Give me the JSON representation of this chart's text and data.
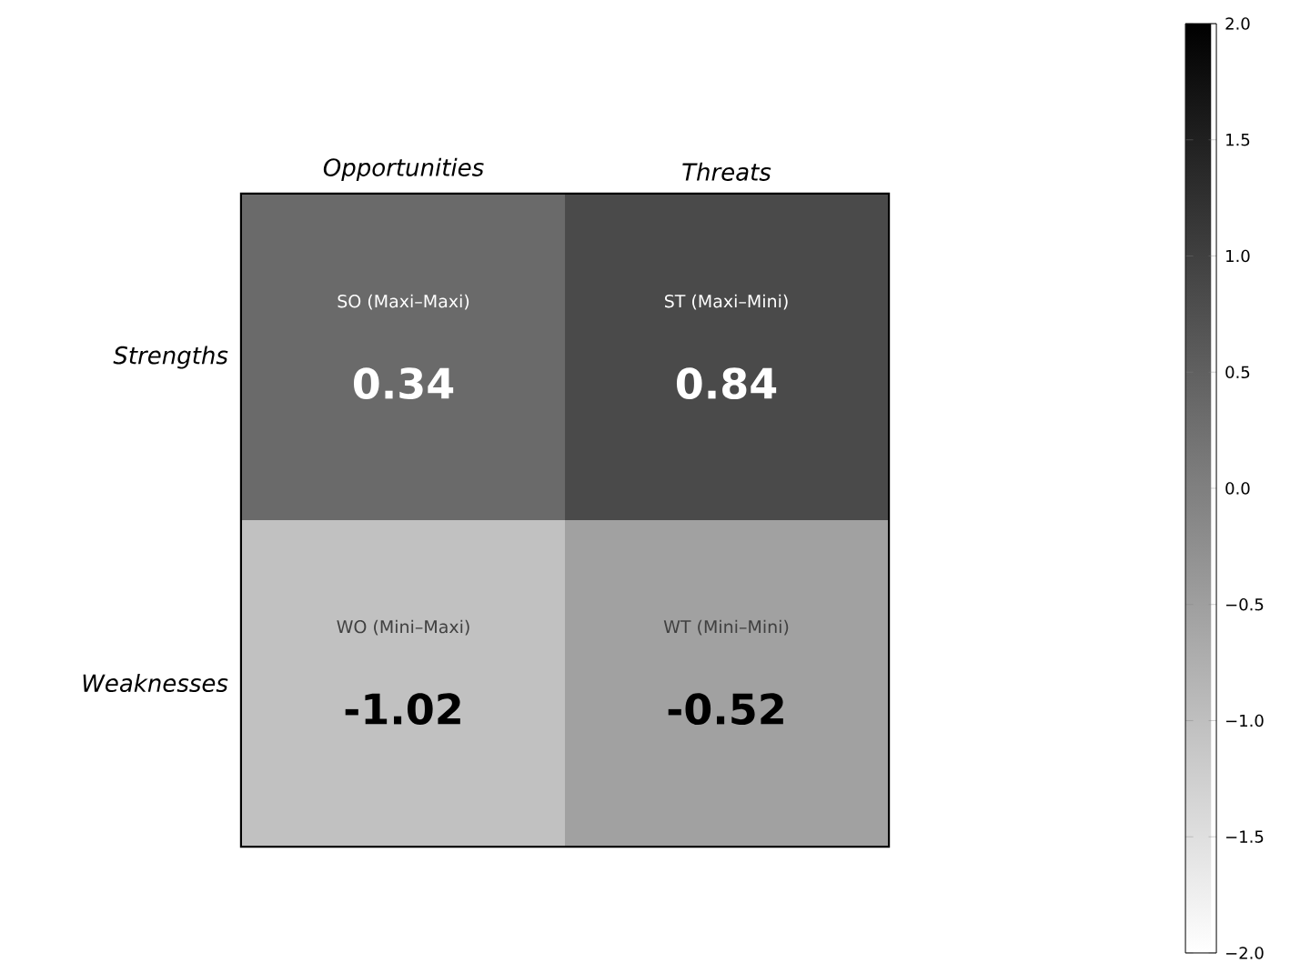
{
  "chart_data": {
    "type": "heatmap",
    "categories": [
      "Opportunities",
      "Threats"
    ],
    "y_categories": [
      "Strengths",
      "Weaknesses"
    ],
    "cells": [
      [
        0.34,
        0.84
      ],
      [
        -1.02,
        -0.52
      ]
    ],
    "data_labels": true,
    "annotations": [
      "SO (Maxi–Maxi)",
      "ST (Maxi–Mini)",
      "WO (Mini–Maxi)",
      "WT (Mini–Mini)"
    ],
    "clim": [
      -2,
      2
    ],
    "cticks": [
      {
        "value": -2,
        "label": "−2.0"
      },
      {
        "value": -1.5,
        "label": "−1.5"
      },
      {
        "value": -1,
        "label": "−1.0"
      },
      {
        "value": -0.5,
        "label": "−0.5"
      },
      {
        "value": 0,
        "label": "0.0"
      },
      {
        "value": 0.5,
        "label": "0.5"
      },
      {
        "value": 1,
        "label": "1.0"
      },
      {
        "value": 1.5,
        "label": "1.5"
      },
      {
        "value": 2,
        "label": "2.0"
      }
    ]
  }
}
